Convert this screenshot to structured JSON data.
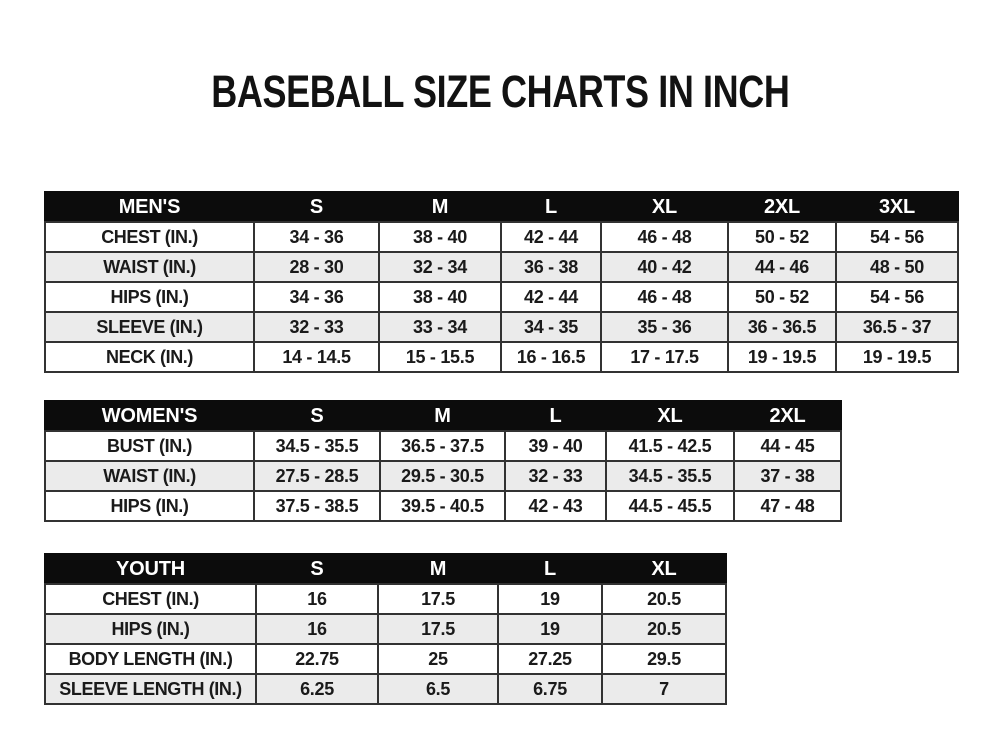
{
  "page": {
    "title": "BASEBALL SIZE CHARTS IN INCH"
  },
  "colors": {
    "page_bg": "#ffffff",
    "header_bg": "#0c0c0c",
    "header_text": "#ffffff",
    "row_alt_bg": "#ebebeb",
    "border": "#323232",
    "text": "#1a1a1a"
  },
  "tables": [
    {
      "name": "mens",
      "header_label": "MEN'S",
      "columns": [
        "S",
        "M",
        "L",
        "XL",
        "2XL",
        "3XL"
      ],
      "rows": [
        {
          "label": "CHEST (IN.)",
          "values": [
            "34 - 36",
            "38 - 40",
            "42 - 44",
            "46 - 48",
            "50 - 52",
            "54 - 56"
          ]
        },
        {
          "label": "WAIST (IN.)",
          "values": [
            "28 - 30",
            "32 - 34",
            "36 - 38",
            "40 - 42",
            "44 - 46",
            "48 - 50"
          ]
        },
        {
          "label": "HIPS (IN.)",
          "values": [
            "34 - 36",
            "38 - 40",
            "42 - 44",
            "46 - 48",
            "50 - 52",
            "54 - 56"
          ]
        },
        {
          "label": "SLEEVE (IN.)",
          "values": [
            "32 - 33",
            "33 - 34",
            "34 - 35",
            "35 - 36",
            "36 - 36.5",
            "36.5 - 37"
          ]
        },
        {
          "label": "NECK (IN.)",
          "values": [
            "14 - 14.5",
            "15 - 15.5",
            "16 - 16.5",
            "17 - 17.5",
            "19 - 19.5",
            "19 - 19.5"
          ]
        }
      ]
    },
    {
      "name": "womens",
      "header_label": "WOMEN'S",
      "columns": [
        "S",
        "M",
        "L",
        "XL",
        "2XL"
      ],
      "rows": [
        {
          "label": "BUST (IN.)",
          "values": [
            "34.5 - 35.5",
            "36.5 - 37.5",
            "39 - 40",
            "41.5 - 42.5",
            "44 - 45"
          ]
        },
        {
          "label": "WAIST (IN.)",
          "values": [
            "27.5 - 28.5",
            "29.5 - 30.5",
            "32 - 33",
            "34.5 - 35.5",
            "37 - 38"
          ]
        },
        {
          "label": "HIPS (IN.)",
          "values": [
            "37.5 - 38.5",
            "39.5 - 40.5",
            "42 - 43",
            "44.5 - 45.5",
            "47 - 48"
          ]
        }
      ]
    },
    {
      "name": "youth",
      "header_label": "YOUTH",
      "columns": [
        "S",
        "M",
        "L",
        "XL"
      ],
      "rows": [
        {
          "label": "CHEST (IN.)",
          "values": [
            "16",
            "17.5",
            "19",
            "20.5"
          ]
        },
        {
          "label": "HIPS (IN.)",
          "values": [
            "16",
            "17.5",
            "19",
            "20.5"
          ]
        },
        {
          "label": "BODY LENGTH (IN.)",
          "values": [
            "22.75",
            "25",
            "27.25",
            "29.5"
          ]
        },
        {
          "label": "SLEEVE LENGTH (IN.)",
          "values": [
            "6.25",
            "6.5",
            "6.75",
            "7"
          ]
        }
      ]
    }
  ]
}
